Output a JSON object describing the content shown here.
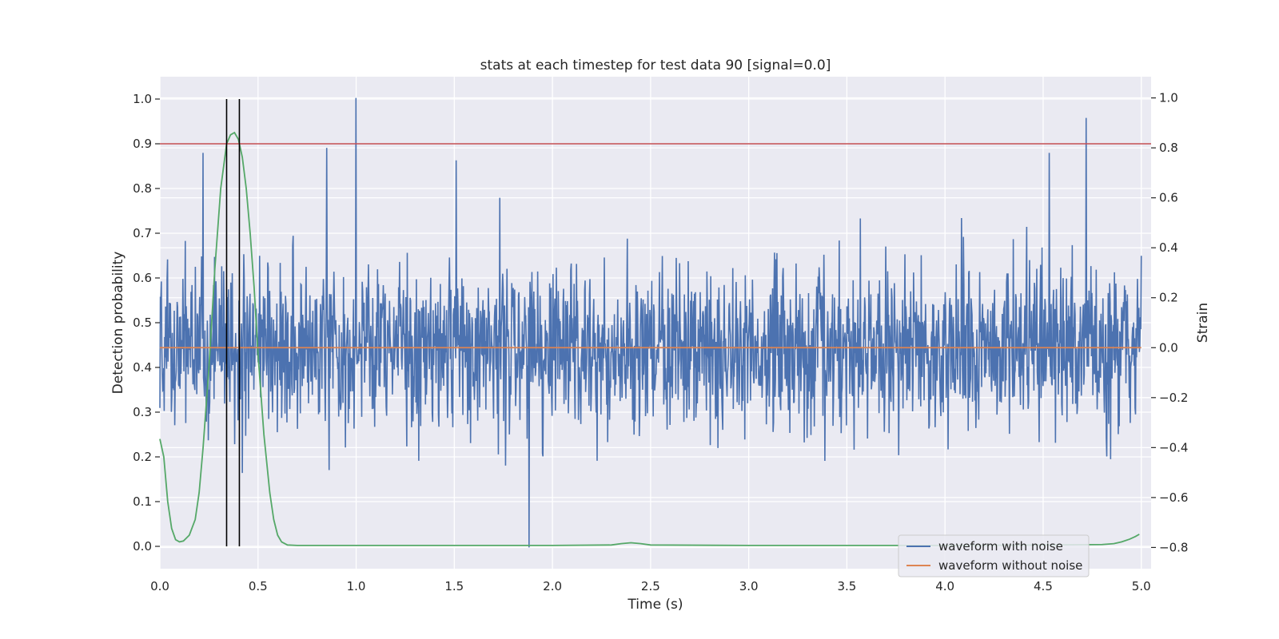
{
  "chart_data": {
    "type": "line",
    "title": "stats at each timestep for test data 90 [signal=0.0]",
    "xlabel": "Time (s)",
    "ylabel": "Detection probability",
    "y2label": "Strain",
    "xlim": [
      0.0,
      5.05
    ],
    "ylim": [
      -0.05,
      1.05
    ],
    "y2lim": [
      -0.885,
      1.085
    ],
    "xticks": [
      "0.0",
      "0.5",
      "1.0",
      "1.5",
      "2.0",
      "2.5",
      "3.0",
      "3.5",
      "4.0",
      "4.5",
      "5.0"
    ],
    "yticks": [
      "0.0",
      "0.1",
      "0.2",
      "0.3",
      "0.4",
      "0.5",
      "0.6",
      "0.7",
      "0.8",
      "0.9",
      "1.0"
    ],
    "y2ticks": [
      "−0.8",
      "−0.6",
      "−0.4",
      "−0.2",
      "0.0",
      "0.2",
      "0.4",
      "0.6",
      "0.8",
      "1.0"
    ],
    "grid": true,
    "legend_position": "lower-right",
    "series": [
      {
        "name": "waveform with noise",
        "axis": "right",
        "color": "#4c72b0",
        "kind": "noise",
        "n_points": 2048,
        "x_range": [
          0.0,
          5.0
        ],
        "std": 0.16,
        "range": [
          -0.8,
          1.0
        ],
        "spikes": [
          {
            "x": 1.0,
            "y": 1.0
          },
          {
            "x": 4.72,
            "y": 0.92
          },
          {
            "x": 0.85,
            "y": 0.8
          },
          {
            "x": 0.22,
            "y": 0.78
          },
          {
            "x": 1.88,
            "y": -0.8
          },
          {
            "x": 4.53,
            "y": 0.78
          },
          {
            "x": 1.51,
            "y": 0.75
          }
        ]
      },
      {
        "name": "waveform without noise",
        "axis": "right",
        "color": "#dd8452",
        "x": [
          0.0,
          5.0
        ],
        "y": [
          0.0,
          0.0
        ]
      },
      {
        "axis": "left",
        "color": "#55a868",
        "x": [
          0.0,
          0.02,
          0.04,
          0.06,
          0.08,
          0.1,
          0.12,
          0.15,
          0.18,
          0.2,
          0.22,
          0.25,
          0.28,
          0.31,
          0.34,
          0.36,
          0.38,
          0.4,
          0.42,
          0.44,
          0.46,
          0.48,
          0.5,
          0.53,
          0.56,
          0.58,
          0.6,
          0.62,
          0.65,
          0.7,
          1.0,
          1.5,
          2.0,
          2.3,
          2.35,
          2.4,
          2.45,
          2.5,
          3.0,
          3.5,
          4.0,
          4.5,
          4.8,
          4.86,
          4.9,
          4.94,
          4.97,
          4.99
        ],
        "y": [
          0.24,
          0.2,
          0.1,
          0.04,
          0.015,
          0.01,
          0.012,
          0.025,
          0.06,
          0.12,
          0.22,
          0.4,
          0.62,
          0.8,
          0.9,
          0.92,
          0.925,
          0.91,
          0.87,
          0.8,
          0.7,
          0.58,
          0.43,
          0.25,
          0.12,
          0.06,
          0.025,
          0.01,
          0.003,
          0.002,
          0.002,
          0.002,
          0.002,
          0.003,
          0.006,
          0.008,
          0.006,
          0.003,
          0.002,
          0.002,
          0.002,
          0.003,
          0.004,
          0.006,
          0.01,
          0.016,
          0.022,
          0.027
        ]
      },
      {
        "axis": "left",
        "color": "#c44e52",
        "kind": "hline",
        "y": 0.9
      },
      {
        "axis": "left",
        "color": "#000000",
        "kind": "vline",
        "x": 0.34,
        "y_range": [
          0.0,
          1.0
        ]
      },
      {
        "axis": "left",
        "color": "#000000",
        "kind": "vline",
        "x": 0.405,
        "y_range": [
          0.0,
          1.0
        ]
      }
    ]
  }
}
